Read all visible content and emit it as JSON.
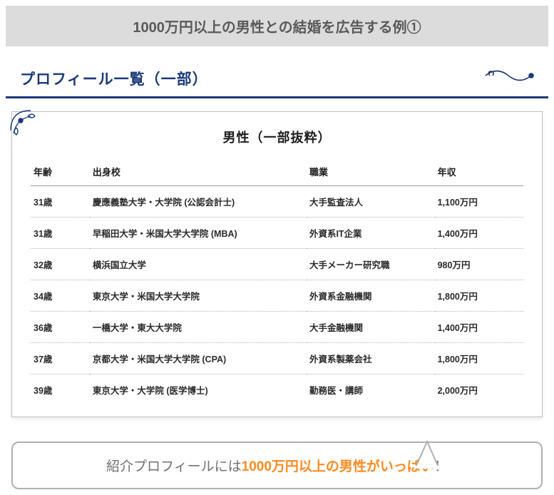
{
  "title": "1000万円以上の男性との結婚を広告する例①",
  "section_title": "プロフィール一覧（一部）",
  "card": {
    "title": "男性（一部抜粋）",
    "columns": {
      "age": "年齢",
      "school": "出身校",
      "job": "職業",
      "income": "年収"
    },
    "rows": [
      {
        "age": "31歳",
        "school": "慶應義塾大学・大学院 (公認会計士)",
        "job": "大手監査法人",
        "income": "1,100万円"
      },
      {
        "age": "31歳",
        "school": "早稲田大学・米国大学大学院 (MBA)",
        "job": "外資系IT企業",
        "income": "1,400万円"
      },
      {
        "age": "32歳",
        "school": "横浜国立大学",
        "job": "大手メーカー研究職",
        "income": "980万円"
      },
      {
        "age": "34歳",
        "school": "東京大学・米国大学大学院",
        "job": "外資系金融機関",
        "income": "1,800万円"
      },
      {
        "age": "36歳",
        "school": "一橋大学・東大大学院",
        "job": "大手金融機関",
        "income": "1,400万円"
      },
      {
        "age": "37歳",
        "school": "京都大学・米国大学大学院 (CPA)",
        "job": "外資系製薬会社",
        "income": "1,800万円"
      },
      {
        "age": "39歳",
        "school": "東京大学・大学院 (医学博士)",
        "job": "勤務医・講師",
        "income": "2,000万円"
      }
    ]
  },
  "callout": {
    "prefix": "紹介プロフィールには",
    "highlight": "1000万円以上の男性がいっぱい",
    "suffix": "！"
  },
  "colors": {
    "title_bg": "#dcdcdc",
    "title_fg": "#5a5a5a",
    "navy": "#1a3a7a",
    "orange": "#ff8a1f",
    "gray_border": "#b0b0b0",
    "gray_text": "#707070"
  }
}
